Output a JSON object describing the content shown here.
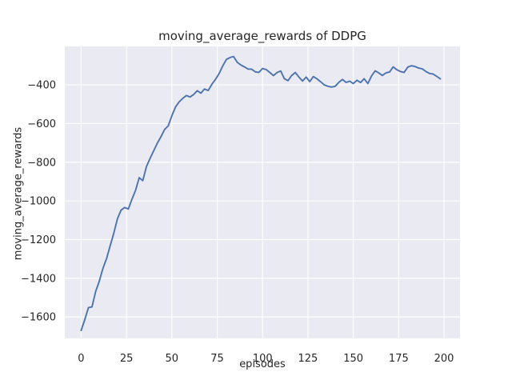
{
  "chart_data": {
    "type": "line",
    "title": "moving_average_rewards of DDPG",
    "xlabel": "episodes",
    "ylabel": "moving_average_rewards",
    "x_ticks": [
      0,
      25,
      50,
      75,
      100,
      125,
      150,
      175,
      200
    ],
    "y_ticks": [
      -400,
      -600,
      -800,
      -1000,
      -1200,
      -1400,
      -1600
    ],
    "xlim": [
      -9,
      208.8
    ],
    "ylim": [
      -1711,
      -201
    ],
    "grid": true,
    "legend": "none",
    "axes_background": "#eaeaf2",
    "grid_color": "#ffffff",
    "line_color": "#4c72b0",
    "text_color": "#262626",
    "series": [
      {
        "name": "moving_average_rewards",
        "x": [
          0,
          2,
          4,
          6,
          8,
          10,
          12,
          14,
          16,
          18,
          20,
          22,
          24,
          26,
          28,
          30,
          32,
          34,
          36,
          38,
          40,
          42,
          44,
          46,
          48,
          50,
          52,
          54,
          56,
          58,
          60,
          62,
          64,
          66,
          68,
          70,
          72,
          74,
          76,
          78,
          80,
          82,
          84,
          86,
          88,
          90,
          92,
          94,
          96,
          98,
          100,
          102,
          104,
          106,
          108,
          110,
          112,
          114,
          116,
          118,
          120,
          122,
          124,
          126,
          128,
          130,
          132,
          134,
          136,
          138,
          140,
          142,
          144,
          146,
          148,
          150,
          152,
          154,
          156,
          158,
          160,
          162,
          164,
          166,
          168,
          170,
          172,
          174,
          176,
          178,
          180,
          182,
          184,
          186,
          188,
          190,
          192,
          194,
          196,
          198
        ],
        "y": [
          -1670,
          -1615,
          -1552,
          -1548,
          -1468,
          -1415,
          -1350,
          -1298,
          -1232,
          -1168,
          -1092,
          -1048,
          -1034,
          -1042,
          -992,
          -945,
          -880,
          -895,
          -822,
          -780,
          -741,
          -701,
          -668,
          -631,
          -612,
          -560,
          -514,
          -488,
          -470,
          -455,
          -463,
          -450,
          -430,
          -443,
          -421,
          -429,
          -398,
          -372,
          -342,
          -303,
          -269,
          -259,
          -253,
          -283,
          -297,
          -307,
          -318,
          -319,
          -333,
          -335,
          -315,
          -321,
          -336,
          -352,
          -336,
          -328,
          -368,
          -378,
          -352,
          -336,
          -359,
          -380,
          -360,
          -383,
          -357,
          -369,
          -384,
          -400,
          -407,
          -411,
          -407,
          -387,
          -372,
          -387,
          -381,
          -393,
          -376,
          -388,
          -368,
          -393,
          -355,
          -327,
          -338,
          -351,
          -338,
          -333,
          -307,
          -322,
          -331,
          -336,
          -308,
          -301,
          -305,
          -313,
          -317,
          -331,
          -341,
          -344,
          -356,
          -369
        ]
      }
    ]
  }
}
